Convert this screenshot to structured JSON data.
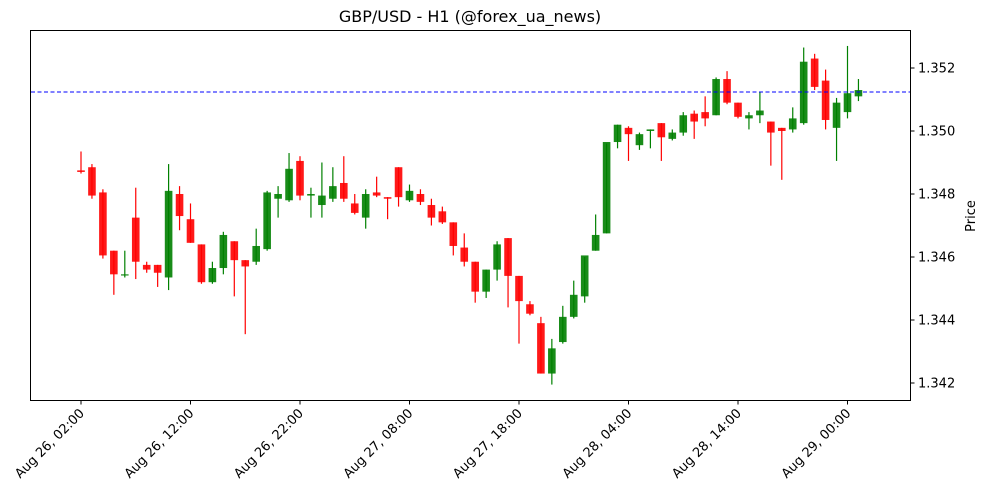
{
  "chart_data": {
    "type": "candlestick",
    "title": "GBP/USD - H1 (@forex_ua_news)",
    "xlabel": "",
    "ylabel": "Price",
    "ylim": [
      1.3414,
      1.3532
    ],
    "grid": false,
    "y_ticks": [
      "1.342",
      "1.344",
      "1.346",
      "1.348",
      "1.350",
      "1.352"
    ],
    "x_ticks": [
      "Aug 26, 02:00",
      "Aug 26, 12:00",
      "Aug 26, 22:00",
      "Aug 27, 08:00",
      "Aug 27, 18:00",
      "Aug 28, 04:00",
      "Aug 28, 14:00",
      "Aug 29, 00:00"
    ],
    "x_tick_indices": [
      0,
      10,
      20,
      30,
      40,
      50,
      60,
      70
    ],
    "reference_line": {
      "value": 1.35124,
      "color": "#0000ff",
      "style": "dashed"
    },
    "up_color": "#008000",
    "down_color": "#ff0000",
    "candles": [
      {
        "t": "Aug 26 02:00",
        "o": 1.34875,
        "h": 1.34935,
        "l": 1.34865,
        "c": 1.3487
      },
      {
        "t": "Aug 26 03:00",
        "o": 1.34885,
        "h": 1.34895,
        "l": 1.34785,
        "c": 1.34795
      },
      {
        "t": "Aug 26 04:00",
        "o": 1.34805,
        "h": 1.34815,
        "l": 1.34595,
        "c": 1.34605
      },
      {
        "t": "Aug 26 05:00",
        "o": 1.3462,
        "h": 1.3462,
        "l": 1.3448,
        "c": 1.34545
      },
      {
        "t": "Aug 26 06:00",
        "o": 1.34545,
        "h": 1.3462,
        "l": 1.34535,
        "c": 1.34545
      },
      {
        "t": "Aug 26 07:00",
        "o": 1.34725,
        "h": 1.3482,
        "l": 1.3453,
        "c": 1.34585
      },
      {
        "t": "Aug 26 08:00",
        "o": 1.34575,
        "h": 1.34585,
        "l": 1.3455,
        "c": 1.3456
      },
      {
        "t": "Aug 26 09:00",
        "o": 1.34575,
        "h": 1.34575,
        "l": 1.34505,
        "c": 1.3455
      },
      {
        "t": "Aug 26 10:00",
        "o": 1.34535,
        "h": 1.34895,
        "l": 1.34495,
        "c": 1.3481
      },
      {
        "t": "Aug 26 11:00",
        "o": 1.348,
        "h": 1.34825,
        "l": 1.34685,
        "c": 1.3473
      },
      {
        "t": "Aug 26 12:00",
        "o": 1.3472,
        "h": 1.3477,
        "l": 1.34645,
        "c": 1.34645
      },
      {
        "t": "Aug 26 13:00",
        "o": 1.3464,
        "h": 1.3464,
        "l": 1.34515,
        "c": 1.3452
      },
      {
        "t": "Aug 26 14:00",
        "o": 1.3452,
        "h": 1.34585,
        "l": 1.34515,
        "c": 1.34565
      },
      {
        "t": "Aug 26 15:00",
        "o": 1.34565,
        "h": 1.3468,
        "l": 1.34545,
        "c": 1.3467
      },
      {
        "t": "Aug 26 16:00",
        "o": 1.3465,
        "h": 1.3465,
        "l": 1.34475,
        "c": 1.3459
      },
      {
        "t": "Aug 26 17:00",
        "o": 1.3459,
        "h": 1.3459,
        "l": 1.34355,
        "c": 1.3457
      },
      {
        "t": "Aug 26 18:00",
        "o": 1.34585,
        "h": 1.3469,
        "l": 1.34575,
        "c": 1.34635
      },
      {
        "t": "Aug 26 19:00",
        "o": 1.34625,
        "h": 1.3481,
        "l": 1.3462,
        "c": 1.34805
      },
      {
        "t": "Aug 26 20:00",
        "o": 1.34785,
        "h": 1.34825,
        "l": 1.34725,
        "c": 1.348
      },
      {
        "t": "Aug 26 21:00",
        "o": 1.3478,
        "h": 1.3493,
        "l": 1.34775,
        "c": 1.3488
      },
      {
        "t": "Aug 26 22:00",
        "o": 1.34905,
        "h": 1.3492,
        "l": 1.3478,
        "c": 1.34795
      },
      {
        "t": "Aug 26 23:00",
        "o": 1.34795,
        "h": 1.3482,
        "l": 1.34725,
        "c": 1.348
      },
      {
        "t": "Aug 27 00:00",
        "o": 1.34765,
        "h": 1.349,
        "l": 1.34725,
        "c": 1.34795
      },
      {
        "t": "Aug 27 01:00",
        "o": 1.34785,
        "h": 1.34885,
        "l": 1.34775,
        "c": 1.34825
      },
      {
        "t": "Aug 27 02:00",
        "o": 1.34835,
        "h": 1.3492,
        "l": 1.34775,
        "c": 1.34785
      },
      {
        "t": "Aug 27 03:00",
        "o": 1.3477,
        "h": 1.348,
        "l": 1.34735,
        "c": 1.3474
      },
      {
        "t": "Aug 27 04:00",
        "o": 1.34725,
        "h": 1.34815,
        "l": 1.3469,
        "c": 1.348
      },
      {
        "t": "Aug 27 05:00",
        "o": 1.34805,
        "h": 1.34855,
        "l": 1.3479,
        "c": 1.34795
      },
      {
        "t": "Aug 27 06:00",
        "o": 1.3479,
        "h": 1.3479,
        "l": 1.3472,
        "c": 1.34785
      },
      {
        "t": "Aug 27 07:00",
        "o": 1.34885,
        "h": 1.34885,
        "l": 1.3476,
        "c": 1.3479
      },
      {
        "t": "Aug 27 08:00",
        "o": 1.3478,
        "h": 1.3483,
        "l": 1.34775,
        "c": 1.3481
      },
      {
        "t": "Aug 27 09:00",
        "o": 1.348,
        "h": 1.34815,
        "l": 1.34765,
        "c": 1.34775
      },
      {
        "t": "Aug 27 10:00",
        "o": 1.34765,
        "h": 1.34785,
        "l": 1.347,
        "c": 1.34725
      },
      {
        "t": "Aug 27 11:00",
        "o": 1.34745,
        "h": 1.3476,
        "l": 1.34705,
        "c": 1.3471
      },
      {
        "t": "Aug 27 12:00",
        "o": 1.3471,
        "h": 1.3471,
        "l": 1.34605,
        "c": 1.34635
      },
      {
        "t": "Aug 27 13:00",
        "o": 1.3463,
        "h": 1.34675,
        "l": 1.3457,
        "c": 1.34585
      },
      {
        "t": "Aug 27 14:00",
        "o": 1.34585,
        "h": 1.34585,
        "l": 1.34455,
        "c": 1.3449
      },
      {
        "t": "Aug 27 15:00",
        "o": 1.3449,
        "h": 1.3456,
        "l": 1.3447,
        "c": 1.3456
      },
      {
        "t": "Aug 27 16:00",
        "o": 1.3456,
        "h": 1.3465,
        "l": 1.34525,
        "c": 1.3464
      },
      {
        "t": "Aug 27 17:00",
        "o": 1.3466,
        "h": 1.3466,
        "l": 1.3444,
        "c": 1.3454
      },
      {
        "t": "Aug 27 18:00",
        "o": 1.3454,
        "h": 1.3454,
        "l": 1.34325,
        "c": 1.3446
      },
      {
        "t": "Aug 27 19:00",
        "o": 1.3445,
        "h": 1.3446,
        "l": 1.34415,
        "c": 1.3442
      },
      {
        "t": "Aug 27 20:00",
        "o": 1.3439,
        "h": 1.3441,
        "l": 1.3423,
        "c": 1.3423
      },
      {
        "t": "Aug 27 21:00",
        "o": 1.3423,
        "h": 1.3434,
        "l": 1.34195,
        "c": 1.3431
      },
      {
        "t": "Aug 27 22:00",
        "o": 1.3433,
        "h": 1.34445,
        "l": 1.34325,
        "c": 1.3441
      },
      {
        "t": "Aug 27 23:00",
        "o": 1.3441,
        "h": 1.34525,
        "l": 1.34405,
        "c": 1.3448
      },
      {
        "t": "Aug 28 00:00",
        "o": 1.34475,
        "h": 1.346,
        "l": 1.34455,
        "c": 1.34605
      },
      {
        "t": "Aug 28 01:00",
        "o": 1.3462,
        "h": 1.34735,
        "l": 1.3462,
        "c": 1.3467
      },
      {
        "t": "Aug 28 02:00",
        "o": 1.34675,
        "h": 1.3496,
        "l": 1.34675,
        "c": 1.34965
      },
      {
        "t": "Aug 28 03:00",
        "o": 1.34965,
        "h": 1.3502,
        "l": 1.34945,
        "c": 1.3502
      },
      {
        "t": "Aug 28 04:00",
        "o": 1.3501,
        "h": 1.35015,
        "l": 1.34905,
        "c": 1.3499
      },
      {
        "t": "Aug 28 05:00",
        "o": 1.34955,
        "h": 1.34995,
        "l": 1.3494,
        "c": 1.3499
      },
      {
        "t": "Aug 28 06:00",
        "o": 1.35,
        "h": 1.35005,
        "l": 1.34945,
        "c": 1.35005
      },
      {
        "t": "Aug 28 07:00",
        "o": 1.35025,
        "h": 1.35025,
        "l": 1.34905,
        "c": 1.3498
      },
      {
        "t": "Aug 28 08:00",
        "o": 1.34975,
        "h": 1.35005,
        "l": 1.3497,
        "c": 1.34995
      },
      {
        "t": "Aug 28 09:00",
        "o": 1.34995,
        "h": 1.3506,
        "l": 1.34985,
        "c": 1.3505
      },
      {
        "t": "Aug 28 10:00",
        "o": 1.35055,
        "h": 1.35065,
        "l": 1.34975,
        "c": 1.3503
      },
      {
        "t": "Aug 28 11:00",
        "o": 1.3506,
        "h": 1.3511,
        "l": 1.35015,
        "c": 1.3504
      },
      {
        "t": "Aug 28 12:00",
        "o": 1.3505,
        "h": 1.3517,
        "l": 1.3505,
        "c": 1.35165
      },
      {
        "t": "Aug 28 13:00",
        "o": 1.35165,
        "h": 1.3519,
        "l": 1.35085,
        "c": 1.3509
      },
      {
        "t": "Aug 28 14:00",
        "o": 1.3509,
        "h": 1.3509,
        "l": 1.3504,
        "c": 1.35045
      },
      {
        "t": "Aug 28 15:00",
        "o": 1.3504,
        "h": 1.3506,
        "l": 1.35005,
        "c": 1.3505
      },
      {
        "t": "Aug 28 16:00",
        "o": 1.3505,
        "h": 1.35125,
        "l": 1.35025,
        "c": 1.35065
      },
      {
        "t": "Aug 28 17:00",
        "o": 1.3503,
        "h": 1.3503,
        "l": 1.3489,
        "c": 1.34995
      },
      {
        "t": "Aug 28 18:00",
        "o": 1.3501,
        "h": 1.3501,
        "l": 1.34845,
        "c": 1.35
      },
      {
        "t": "Aug 28 19:00",
        "o": 1.35005,
        "h": 1.35075,
        "l": 1.34995,
        "c": 1.3504
      },
      {
        "t": "Aug 28 20:00",
        "o": 1.35025,
        "h": 1.35265,
        "l": 1.3502,
        "c": 1.3522
      },
      {
        "t": "Aug 28 21:00",
        "o": 1.3523,
        "h": 1.35245,
        "l": 1.3513,
        "c": 1.3514
      },
      {
        "t": "Aug 28 22:00",
        "o": 1.3516,
        "h": 1.35195,
        "l": 1.35005,
        "c": 1.35035
      },
      {
        "t": "Aug 28 23:00",
        "o": 1.3501,
        "h": 1.35105,
        "l": 1.34905,
        "c": 1.3509
      },
      {
        "t": "Aug 29 00:00",
        "o": 1.3506,
        "h": 1.3527,
        "l": 1.3504,
        "c": 1.3512
      },
      {
        "t": "Aug 29 01:00",
        "o": 1.3511,
        "h": 1.35165,
        "l": 1.35095,
        "c": 1.3513
      }
    ]
  }
}
